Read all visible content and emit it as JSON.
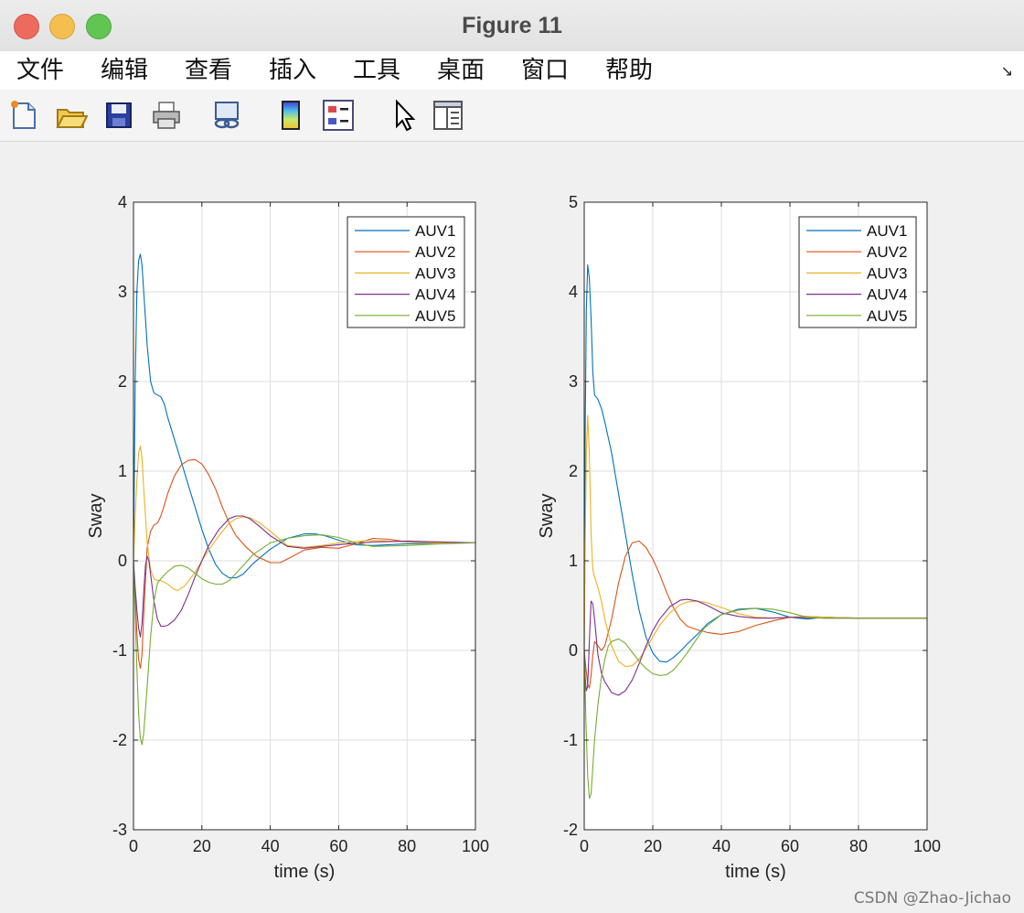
{
  "window": {
    "title": "Figure 11"
  },
  "menu": {
    "items": [
      "文件",
      "编辑",
      "查看",
      "插入",
      "工具",
      "桌面",
      "窗口",
      "帮助"
    ]
  },
  "toolbar": {
    "icons": [
      "new-figure-icon",
      "open-file-icon",
      "save-icon",
      "print-icon",
      "link-plot-icon",
      "colorbar-icon",
      "legend-icon",
      "pointer-icon",
      "property-editor-icon"
    ]
  },
  "colors": {
    "AUV1": "#0072BD",
    "AUV2": "#D95319",
    "AUV3": "#EDB120",
    "AUV4": "#7E2F8E",
    "AUV5": "#77AC30"
  },
  "watermark": "CSDN @Zhao-Jichao",
  "chart_data": [
    {
      "type": "line",
      "xlabel": "time (s)",
      "ylabel": "Sway",
      "xlim": [
        0,
        100
      ],
      "ylim": [
        -3,
        4
      ],
      "xticks": [
        0,
        20,
        40,
        60,
        80,
        100
      ],
      "yticks": [
        -3,
        -2,
        -1,
        0,
        1,
        2,
        3,
        4
      ],
      "grid": true,
      "legend": "top-right",
      "series": [
        {
          "name": "AUV1",
          "x": [
            0,
            0.5,
            1,
            1.5,
            2,
            2.5,
            3,
            4,
            5,
            6,
            7,
            8,
            9,
            10,
            12,
            14,
            16,
            18,
            20,
            22,
            24,
            26,
            28,
            30,
            32,
            35,
            40,
            45,
            50,
            53,
            56,
            60,
            65,
            70,
            80,
            90,
            100
          ],
          "y": [
            0,
            2.0,
            3.0,
            3.35,
            3.42,
            3.3,
            3.0,
            2.4,
            2.0,
            1.87,
            1.85,
            1.83,
            1.75,
            1.6,
            1.35,
            1.1,
            0.85,
            0.6,
            0.35,
            0.13,
            -0.04,
            -0.14,
            -0.19,
            -0.19,
            -0.15,
            -0.03,
            0.13,
            0.25,
            0.3,
            0.3,
            0.28,
            0.23,
            0.18,
            0.17,
            0.19,
            0.2,
            0.2
          ]
        },
        {
          "name": "AUV2",
          "x": [
            0,
            0.5,
            1,
            1.5,
            2,
            2.5,
            3,
            4,
            5,
            6,
            7,
            8,
            9,
            10,
            12,
            14,
            16,
            18,
            20,
            22,
            24,
            26,
            28,
            30,
            33,
            36,
            40,
            43,
            46,
            50,
            55,
            60,
            65,
            70,
            75,
            80,
            90,
            100
          ],
          "y": [
            0,
            -0.4,
            -0.8,
            -1.1,
            -1.2,
            -1.05,
            -0.6,
            0.15,
            0.33,
            0.4,
            0.42,
            0.5,
            0.62,
            0.75,
            0.95,
            1.07,
            1.12,
            1.13,
            1.08,
            0.96,
            0.8,
            0.6,
            0.42,
            0.28,
            0.15,
            0.05,
            -0.02,
            -0.02,
            0.04,
            0.12,
            0.15,
            0.14,
            0.19,
            0.25,
            0.24,
            0.21,
            0.2,
            0.2
          ]
        },
        {
          "name": "AUV3",
          "x": [
            0,
            0.5,
            1,
            1.5,
            2,
            2.5,
            3,
            4,
            5,
            6,
            7,
            8,
            10,
            12,
            13,
            15,
            18,
            20,
            22,
            25,
            28,
            30,
            32,
            34,
            37,
            40,
            45,
            50,
            55,
            60,
            70,
            80,
            90,
            100
          ],
          "y": [
            0,
            0.5,
            0.9,
            1.2,
            1.28,
            1.15,
            0.8,
            0.2,
            -0.1,
            -0.2,
            -0.22,
            -0.22,
            -0.26,
            -0.32,
            -0.33,
            -0.28,
            -0.13,
            0.0,
            0.12,
            0.28,
            0.42,
            0.47,
            0.49,
            0.48,
            0.42,
            0.33,
            0.17,
            0.15,
            0.17,
            0.2,
            0.23,
            0.21,
            0.2,
            0.2
          ]
        },
        {
          "name": "AUV4",
          "x": [
            0,
            0.5,
            1,
            1.5,
            2,
            2.5,
            3,
            3.5,
            4,
            4.5,
            5,
            6,
            7,
            8,
            9,
            10,
            12,
            14,
            16,
            18,
            20,
            22,
            25,
            28,
            30,
            32,
            34,
            37,
            40,
            45,
            50,
            55,
            60,
            70,
            80,
            90,
            100
          ],
          "y": [
            0,
            -0.3,
            -0.55,
            -0.75,
            -0.85,
            -0.7,
            -0.35,
            -0.05,
            0.05,
            0.0,
            -0.15,
            -0.45,
            -0.65,
            -0.73,
            -0.73,
            -0.72,
            -0.66,
            -0.55,
            -0.38,
            -0.18,
            0.0,
            0.17,
            0.35,
            0.47,
            0.5,
            0.5,
            0.47,
            0.38,
            0.28,
            0.16,
            0.14,
            0.16,
            0.18,
            0.21,
            0.22,
            0.21,
            0.2
          ]
        },
        {
          "name": "AUV5",
          "x": [
            0,
            0.5,
            1,
            1.5,
            2,
            2.5,
            3,
            4,
            5,
            6,
            7,
            8,
            10,
            12,
            14,
            16,
            18,
            20,
            22,
            24,
            26,
            28,
            30,
            35,
            40,
            45,
            50,
            55,
            60,
            65,
            70,
            80,
            90,
            100
          ],
          "y": [
            0,
            -0.6,
            -1.2,
            -1.7,
            -1.98,
            -2.05,
            -1.92,
            -1.4,
            -0.85,
            -0.45,
            -0.25,
            -0.2,
            -0.12,
            -0.06,
            -0.05,
            -0.08,
            -0.14,
            -0.2,
            -0.24,
            -0.26,
            -0.26,
            -0.22,
            -0.14,
            0.07,
            0.2,
            0.25,
            0.28,
            0.29,
            0.26,
            0.2,
            0.16,
            0.17,
            0.19,
            0.2
          ]
        }
      ]
    },
    {
      "type": "line",
      "xlabel": "time (s)",
      "ylabel": "Sway",
      "xlim": [
        0,
        100
      ],
      "ylim": [
        -2,
        5
      ],
      "xticks": [
        0,
        20,
        40,
        60,
        80,
        100
      ],
      "yticks": [
        -2,
        -1,
        0,
        1,
        2,
        3,
        4,
        5
      ],
      "grid": true,
      "legend": "top-right",
      "series": [
        {
          "name": "AUV1",
          "x": [
            0,
            0.3,
            0.6,
            1,
            1.5,
            2,
            2.5,
            3,
            4,
            5,
            6,
            8,
            10,
            12,
            14,
            16,
            18,
            20,
            22,
            24,
            26,
            28,
            30,
            33,
            36,
            40,
            45,
            50,
            55,
            60,
            65,
            70,
            80,
            90,
            100
          ],
          "y": [
            0,
            2.5,
            3.8,
            4.3,
            4.15,
            3.7,
            3.1,
            2.85,
            2.8,
            2.7,
            2.55,
            2.2,
            1.75,
            1.3,
            0.85,
            0.45,
            0.15,
            -0.03,
            -0.12,
            -0.13,
            -0.08,
            -0.01,
            0.07,
            0.18,
            0.3,
            0.4,
            0.46,
            0.47,
            0.43,
            0.37,
            0.35,
            0.37,
            0.36,
            0.36,
            0.36
          ]
        },
        {
          "name": "AUV2",
          "x": [
            0,
            0.5,
            1,
            1.5,
            2,
            2.5,
            3,
            4,
            5,
            6,
            8,
            10,
            12,
            14,
            16,
            18,
            20,
            22,
            24,
            26,
            28,
            30,
            33,
            36,
            40,
            45,
            50,
            55,
            60,
            65,
            70,
            80,
            90,
            100
          ],
          "y": [
            0,
            -0.2,
            -0.38,
            -0.42,
            -0.28,
            -0.05,
            0.1,
            0.05,
            0.0,
            0.05,
            0.35,
            0.75,
            1.05,
            1.2,
            1.22,
            1.15,
            1.02,
            0.85,
            0.65,
            0.48,
            0.35,
            0.27,
            0.23,
            0.2,
            0.18,
            0.21,
            0.28,
            0.33,
            0.37,
            0.38,
            0.37,
            0.36,
            0.36,
            0.36
          ]
        },
        {
          "name": "AUV3",
          "x": [
            0,
            0.3,
            0.6,
            1,
            1.5,
            2,
            2.5,
            3,
            4,
            5,
            6,
            8,
            10,
            12,
            14,
            16,
            18,
            20,
            22,
            25,
            28,
            30,
            33,
            36,
            40,
            45,
            50,
            55,
            60,
            65,
            70,
            80,
            90,
            100
          ],
          "y": [
            0,
            1.2,
            2.2,
            2.62,
            2.2,
            1.3,
            0.9,
            0.82,
            0.7,
            0.55,
            0.35,
            0.05,
            -0.12,
            -0.18,
            -0.17,
            -0.1,
            0.02,
            0.15,
            0.28,
            0.42,
            0.51,
            0.54,
            0.55,
            0.53,
            0.48,
            0.41,
            0.37,
            0.36,
            0.37,
            0.38,
            0.37,
            0.36,
            0.36,
            0.36
          ]
        },
        {
          "name": "AUV4",
          "x": [
            0,
            0.3,
            0.6,
            1,
            1.5,
            2,
            2.5,
            3,
            3.5,
            4,
            5,
            6,
            8,
            10,
            12,
            14,
            16,
            18,
            20,
            22,
            25,
            28,
            30,
            33,
            36,
            40,
            45,
            50,
            55,
            60,
            70,
            80,
            90,
            100
          ],
          "y": [
            0,
            -0.3,
            -0.45,
            -0.4,
            0.1,
            0.55,
            0.52,
            0.35,
            0.15,
            -0.05,
            -0.25,
            -0.35,
            -0.47,
            -0.5,
            -0.45,
            -0.33,
            -0.15,
            0.05,
            0.22,
            0.35,
            0.49,
            0.56,
            0.57,
            0.55,
            0.5,
            0.42,
            0.38,
            0.36,
            0.36,
            0.37,
            0.36,
            0.36,
            0.36,
            0.36
          ]
        },
        {
          "name": "AUV5",
          "x": [
            0,
            0.5,
            1,
            1.5,
            2,
            2.5,
            3,
            4,
            5,
            6,
            7,
            8,
            10,
            12,
            14,
            16,
            18,
            20,
            22,
            24,
            26,
            28,
            30,
            35,
            40,
            45,
            50,
            55,
            60,
            65,
            70,
            80,
            90,
            100
          ],
          "y": [
            0,
            -0.8,
            -1.4,
            -1.65,
            -1.6,
            -1.3,
            -1.0,
            -0.6,
            -0.3,
            -0.1,
            0.05,
            0.1,
            0.13,
            0.08,
            -0.02,
            -0.12,
            -0.2,
            -0.26,
            -0.28,
            -0.27,
            -0.22,
            -0.13,
            -0.03,
            0.25,
            0.4,
            0.45,
            0.47,
            0.46,
            0.42,
            0.37,
            0.36,
            0.36,
            0.36,
            0.36
          ]
        }
      ]
    }
  ]
}
